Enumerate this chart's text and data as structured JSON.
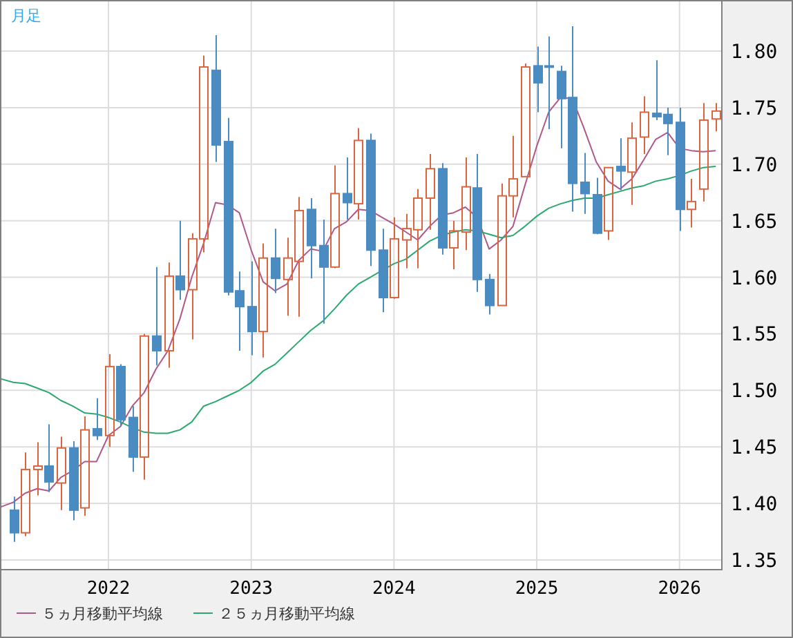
{
  "chart_data": {
    "type": "candlestick",
    "title": "月足",
    "x": [
      "2021-05",
      "2021-06",
      "2021-07",
      "2021-08",
      "2021-09",
      "2021-10",
      "2021-11",
      "2021-12",
      "2022-01",
      "2022-02",
      "2022-03",
      "2022-04",
      "2022-05",
      "2022-06",
      "2022-07",
      "2022-08",
      "2022-09",
      "2022-10",
      "2022-11",
      "2022-12",
      "2023-01",
      "2023-02",
      "2023-03",
      "2023-04",
      "2023-05",
      "2023-06",
      "2023-07",
      "2023-08",
      "2023-09",
      "2023-10",
      "2023-11",
      "2023-12",
      "2024-01",
      "2024-02",
      "2024-03",
      "2024-04",
      "2024-05",
      "2024-06",
      "2024-07",
      "2024-08",
      "2024-09",
      "2024-10",
      "2024-11",
      "2024-12",
      "2025-01",
      "2025-02",
      "2025-03",
      "2025-04",
      "2025-05",
      "2025-06",
      "2025-07",
      "2025-08",
      "2025-09",
      "2025-10",
      "2025-11",
      "2025-12",
      "2026-01",
      "2026-02",
      "2026-03",
      "2026-04"
    ],
    "ohlc": [
      [
        1.394,
        1.406,
        1.366,
        1.374
      ],
      [
        1.374,
        1.445,
        1.371,
        1.43
      ],
      [
        1.43,
        1.454,
        1.407,
        1.433
      ],
      [
        1.433,
        1.47,
        1.41,
        1.419
      ],
      [
        1.418,
        1.459,
        1.394,
        1.449
      ],
      [
        1.449,
        1.455,
        1.385,
        1.394
      ],
      [
        1.396,
        1.477,
        1.389,
        1.465
      ],
      [
        1.466,
        1.493,
        1.456,
        1.46
      ],
      [
        1.46,
        1.532,
        1.45,
        1.521
      ],
      [
        1.521,
        1.523,
        1.468,
        1.474
      ],
      [
        1.476,
        1.486,
        1.428,
        1.441
      ],
      [
        1.441,
        1.55,
        1.421,
        1.548
      ],
      [
        1.548,
        1.609,
        1.522,
        1.535
      ],
      [
        1.535,
        1.613,
        1.52,
        1.601
      ],
      [
        1.601,
        1.65,
        1.58,
        1.589
      ],
      [
        1.589,
        1.639,
        1.545,
        1.634
      ],
      [
        1.634,
        1.796,
        1.622,
        1.786
      ],
      [
        1.783,
        1.814,
        1.702,
        1.717
      ],
      [
        1.72,
        1.741,
        1.584,
        1.587
      ],
      [
        1.588,
        1.605,
        1.535,
        1.574
      ],
      [
        1.574,
        1.614,
        1.531,
        1.552
      ],
      [
        1.552,
        1.63,
        1.529,
        1.617
      ],
      [
        1.617,
        1.643,
        1.586,
        1.599
      ],
      [
        1.598,
        1.635,
        1.566,
        1.617
      ],
      [
        1.614,
        1.671,
        1.565,
        1.659
      ],
      [
        1.66,
        1.67,
        1.599,
        1.628
      ],
      [
        1.628,
        1.651,
        1.559,
        1.609
      ],
      [
        1.609,
        1.699,
        1.608,
        1.674
      ],
      [
        1.674,
        1.706,
        1.651,
        1.666
      ],
      [
        1.665,
        1.732,
        1.651,
        1.721
      ],
      [
        1.721,
        1.727,
        1.61,
        1.624
      ],
      [
        1.624,
        1.643,
        1.569,
        1.582
      ],
      [
        1.582,
        1.653,
        1.581,
        1.634
      ],
      [
        1.633,
        1.656,
        1.608,
        1.643
      ],
      [
        1.642,
        1.678,
        1.608,
        1.67
      ],
      [
        1.67,
        1.709,
        1.642,
        1.696
      ],
      [
        1.696,
        1.701,
        1.62,
        1.626
      ],
      [
        1.626,
        1.65,
        1.607,
        1.641
      ],
      [
        1.64,
        1.706,
        1.624,
        1.68
      ],
      [
        1.679,
        1.709,
        1.587,
        1.598
      ],
      [
        1.598,
        1.603,
        1.567,
        1.575
      ],
      [
        1.575,
        1.683,
        1.575,
        1.672
      ],
      [
        1.672,
        1.725,
        1.653,
        1.687
      ],
      [
        1.689,
        1.789,
        1.689,
        1.786
      ],
      [
        1.787,
        1.804,
        1.746,
        1.772
      ],
      [
        1.787,
        1.813,
        1.731,
        1.786
      ],
      [
        1.782,
        1.787,
        1.714,
        1.758
      ],
      [
        1.759,
        1.822,
        1.658,
        1.683
      ],
      [
        1.684,
        1.71,
        1.656,
        1.674
      ],
      [
        1.673,
        1.688,
        1.638,
        1.639
      ],
      [
        1.641,
        1.697,
        1.633,
        1.697
      ],
      [
        1.698,
        1.723,
        1.677,
        1.694
      ],
      [
        1.693,
        1.737,
        1.664,
        1.723
      ],
      [
        1.724,
        1.76,
        1.709,
        1.746
      ],
      [
        1.745,
        1.792,
        1.739,
        1.742
      ],
      [
        1.744,
        1.75,
        1.708,
        1.736
      ],
      [
        1.737,
        1.75,
        1.641,
        1.66
      ],
      [
        1.66,
        1.687,
        1.644,
        1.667
      ],
      [
        1.678,
        1.754,
        1.667,
        1.739
      ],
      [
        1.74,
        1.754,
        1.729,
        1.747
      ]
    ],
    "colors": [
      "#4a8bc2",
      "#d9643e",
      "#d9643e",
      "#4a8bc2",
      "#d9643e",
      "#4a8bc2",
      "#d9643e",
      "#4a8bc2",
      "#d9643e",
      "#4a8bc2",
      "#4a8bc2",
      "#d9643e",
      "#4a8bc2",
      "#d9643e",
      "#4a8bc2",
      "#d9643e",
      "#d9643e",
      "#4a8bc2",
      "#4a8bc2",
      "#4a8bc2",
      "#4a8bc2",
      "#d9643e",
      "#4a8bc2",
      "#d9643e",
      "#d9643e",
      "#4a8bc2",
      "#4a8bc2",
      "#d9643e",
      "#4a8bc2",
      "#d9643e",
      "#4a8bc2",
      "#4a8bc2",
      "#d9643e",
      "#d9643e",
      "#d9643e",
      "#d9643e",
      "#4a8bc2",
      "#d9643e",
      "#d9643e",
      "#4a8bc2",
      "#4a8bc2",
      "#d9643e",
      "#d9643e",
      "#d9643e",
      "#4a8bc2",
      "#4a8bc2",
      "#4a8bc2",
      "#4a8bc2",
      "#4a8bc2",
      "#4a8bc2",
      "#d9643e",
      "#4a8bc2",
      "#d9643e",
      "#d9643e",
      "#4a8bc2",
      "#4a8bc2",
      "#4a8bc2",
      "#d9643e",
      "#d9643e",
      "#d9643e"
    ],
    "series": [
      {
        "name": "５ヵ月移動平均線",
        "type": "line",
        "color": "#b0578a",
        "x": [
          "2021-04",
          "2021-05",
          "2021-06",
          "2021-07",
          "2021-08",
          "2021-09",
          "2021-10",
          "2021-11",
          "2021-12",
          "2022-01",
          "2022-02",
          "2022-03",
          "2022-04",
          "2022-05",
          "2022-06",
          "2022-07",
          "2022-08",
          "2022-09",
          "2022-10",
          "2022-11",
          "2022-12",
          "2023-01",
          "2023-02",
          "2023-03",
          "2023-04",
          "2023-05",
          "2023-06",
          "2023-07",
          "2023-08",
          "2023-09",
          "2023-10",
          "2023-11",
          "2023-12",
          "2024-01",
          "2024-02",
          "2024-03",
          "2024-04",
          "2024-05",
          "2024-06",
          "2024-07",
          "2024-08",
          "2024-09",
          "2024-10",
          "2024-11",
          "2024-12",
          "2025-01",
          "2025-02",
          "2025-03",
          "2025-04",
          "2025-05",
          "2025-06",
          "2025-07",
          "2025-08",
          "2025-09",
          "2025-10",
          "2025-11",
          "2025-12",
          "2026-01",
          "2026-02",
          "2026-03",
          "2026-04"
        ],
        "values": [
          1.397,
          1.401,
          1.409,
          1.413,
          1.411,
          1.423,
          1.429,
          1.437,
          1.437,
          1.46,
          1.468,
          1.486,
          1.498,
          1.519,
          1.535,
          1.563,
          1.6,
          1.63,
          1.666,
          1.664,
          1.657,
          1.624,
          1.596,
          1.588,
          1.594,
          1.615,
          1.625,
          1.623,
          1.643,
          1.649,
          1.66,
          1.659,
          1.653,
          1.647,
          1.64,
          1.633,
          1.645,
          1.655,
          1.657,
          1.662,
          1.653,
          1.625,
          1.633,
          1.645,
          1.681,
          1.716,
          1.746,
          1.759,
          1.758,
          1.731,
          1.702,
          1.685,
          1.678,
          1.687,
          1.704,
          1.722,
          1.728,
          1.714,
          1.712,
          1.711,
          1.712
        ]
      },
      {
        "name": "２５ヵ月移動平均線",
        "type": "line",
        "color": "#2aa86e",
        "x": [
          "2021-04",
          "2021-05",
          "2021-06",
          "2021-07",
          "2021-08",
          "2021-09",
          "2021-10",
          "2021-11",
          "2021-12",
          "2022-01",
          "2022-02",
          "2022-03",
          "2022-04",
          "2022-05",
          "2022-06",
          "2022-07",
          "2022-08",
          "2022-09",
          "2022-10",
          "2022-11",
          "2022-12",
          "2023-01",
          "2023-02",
          "2023-03",
          "2023-04",
          "2023-05",
          "2023-06",
          "2023-07",
          "2023-08",
          "2023-09",
          "2023-10",
          "2023-11",
          "2023-12",
          "2024-01",
          "2024-02",
          "2024-03",
          "2024-04",
          "2024-05",
          "2024-06",
          "2024-07",
          "2024-08",
          "2024-09",
          "2024-10",
          "2024-11",
          "2024-12",
          "2025-01",
          "2025-02",
          "2025-03",
          "2025-04",
          "2025-05",
          "2025-06",
          "2025-07",
          "2025-08",
          "2025-09",
          "2025-10",
          "2025-11",
          "2025-12",
          "2026-01",
          "2026-02",
          "2026-03",
          "2026-04"
        ],
        "values": [
          1.51,
          1.507,
          1.506,
          1.502,
          1.498,
          1.491,
          1.486,
          1.48,
          1.479,
          1.476,
          1.472,
          1.467,
          1.463,
          1.462,
          1.462,
          1.465,
          1.472,
          1.486,
          1.49,
          1.495,
          1.5,
          1.507,
          1.517,
          1.523,
          1.533,
          1.543,
          1.553,
          1.561,
          1.572,
          1.584,
          1.594,
          1.6,
          1.606,
          1.612,
          1.616,
          1.624,
          1.632,
          1.637,
          1.64,
          1.642,
          1.641,
          1.638,
          1.635,
          1.637,
          1.645,
          1.654,
          1.661,
          1.665,
          1.668,
          1.67,
          1.67,
          1.673,
          1.676,
          1.679,
          1.681,
          1.685,
          1.687,
          1.69,
          1.694,
          1.697,
          1.698
        ]
      }
    ],
    "xlim": [
      "2021-04",
      "2026-04-16"
    ],
    "xticks": [
      "2022",
      "2023",
      "2024",
      "2025",
      "2026"
    ],
    "ylim": [
      1.342,
      1.844
    ],
    "yticks": [
      {
        "value": 1.35,
        "label": "1.35"
      },
      {
        "value": 1.4,
        "label": "1.40"
      },
      {
        "value": 1.45,
        "label": "1.45"
      },
      {
        "value": 1.5,
        "label": "1.50"
      },
      {
        "value": 1.55,
        "label": "1.55"
      },
      {
        "value": 1.6,
        "label": "1.60"
      },
      {
        "value": 1.65,
        "label": "1.65"
      },
      {
        "value": 1.7,
        "label": "1.70"
      },
      {
        "value": 1.75,
        "label": "1.75"
      },
      {
        "value": 1.8,
        "label": "1.80"
      }
    ],
    "grid": true,
    "legend": "bottom left"
  }
}
